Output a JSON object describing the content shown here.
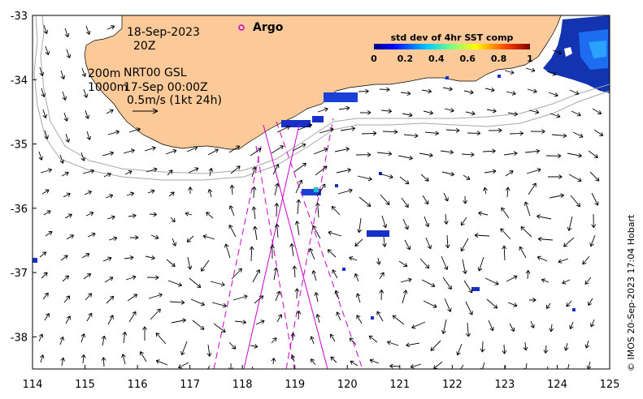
{
  "map": {
    "lon_range": [
      114,
      125
    ],
    "lat_range": [
      -38.5,
      -33
    ],
    "lon_ticks": [
      "114",
      "115",
      "116",
      "117",
      "118",
      "119",
      "120",
      "121",
      "122",
      "123",
      "124",
      "125"
    ],
    "lat_ticks": [
      "-33",
      "-34",
      "-35",
      "-36",
      "-37",
      "-38"
    ],
    "colors": {
      "land": "#fcc998",
      "ocean": "#ffffff",
      "arrow": "#000000",
      "track": "#cc00cc",
      "isobath": "#a8a8a8"
    }
  },
  "info": {
    "date": "18-Sep-2023",
    "hour": "20Z",
    "depth_200": "200m",
    "depth_1000": "1000m",
    "product": "NRT00 GSL",
    "product_time": "17-Sep 00:00Z",
    "scale_label": "0.5m/s (1kt 24h)"
  },
  "legend": {
    "argo_label": "Argo",
    "colorbar_title": "std dev of 4hr SST comp",
    "colorbar_ticks": [
      "0",
      "0.2",
      "0.4",
      "0.6",
      "0.8",
      "1"
    ]
  },
  "credit": "© IMOS 20-Sep-2023 17:04 Hobart"
}
